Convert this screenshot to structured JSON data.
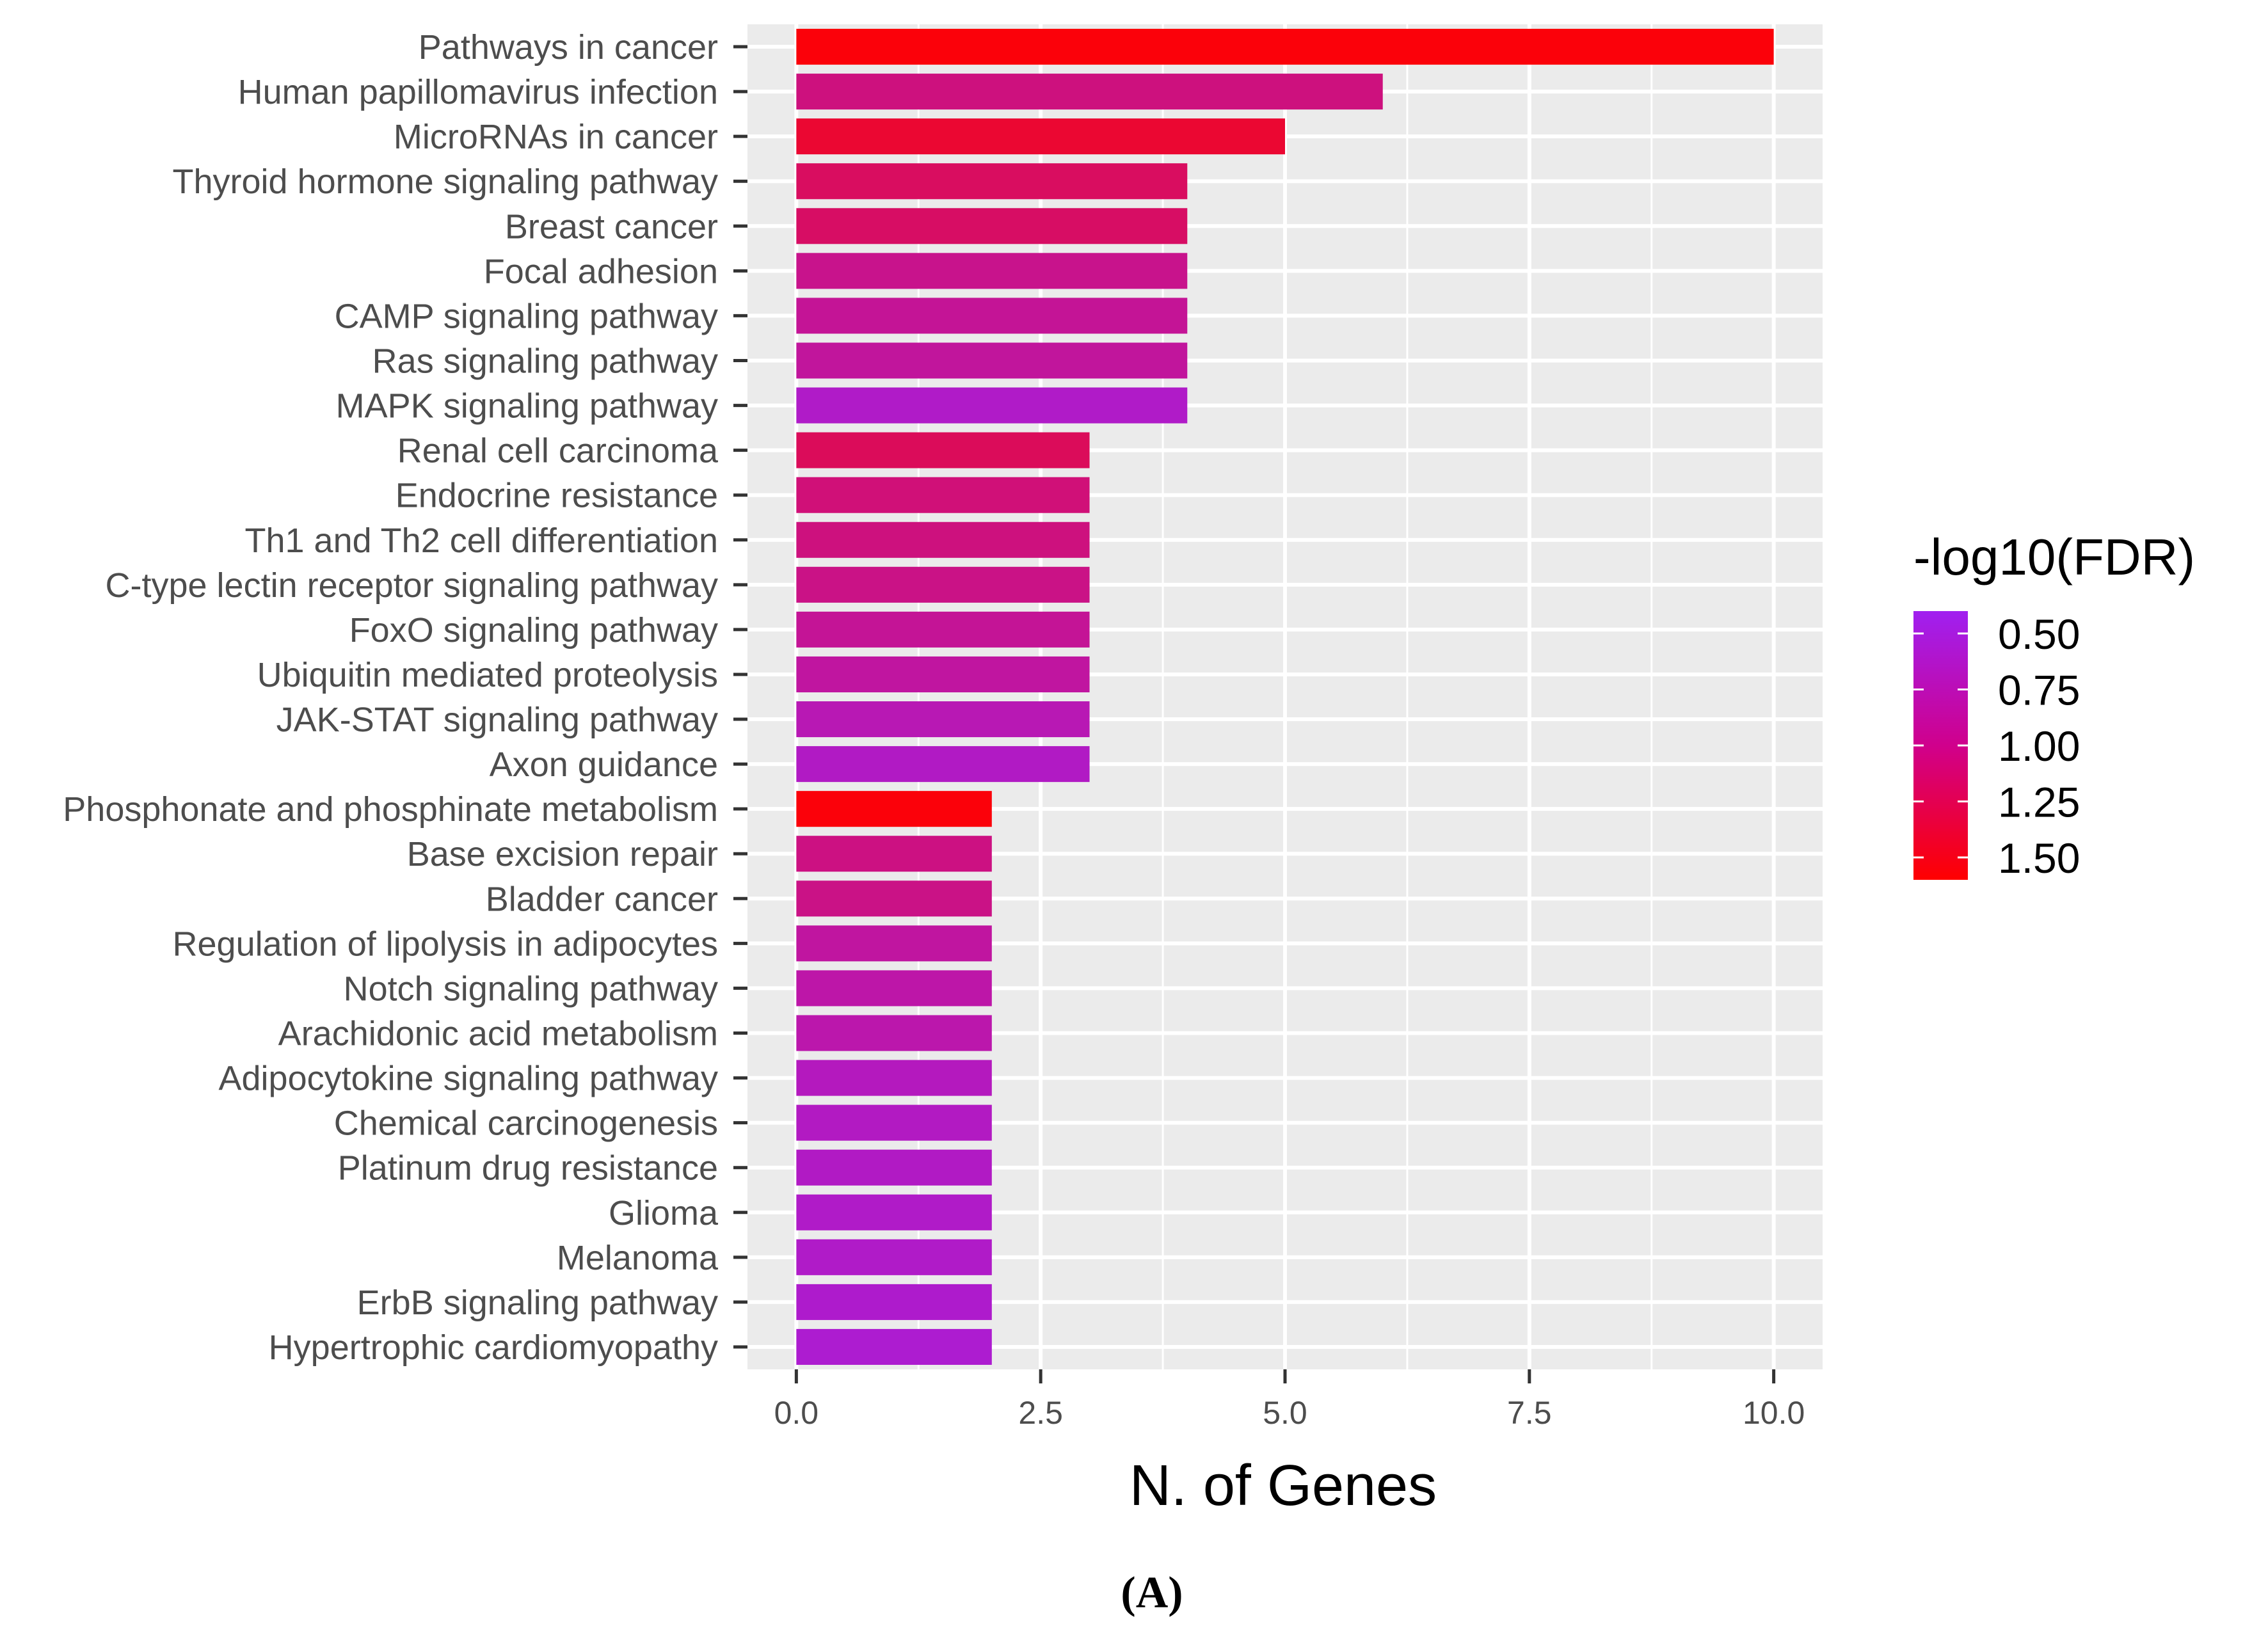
{
  "chart_data": {
    "type": "bar",
    "orientation": "horizontal",
    "title": "",
    "xlabel": "N. of Genes",
    "ylabel": "",
    "xlim": [
      -0.5,
      10.5
    ],
    "x_ticks": [
      0,
      2.5,
      5,
      7.5,
      10
    ],
    "x_tick_labels": [
      "0.0",
      "2.5",
      "5.0",
      "7.5",
      "10.0"
    ],
    "grid": true,
    "categories": [
      "Pathways in cancer",
      "Human papillomavirus infection",
      "MicroRNAs in cancer",
      "Thyroid hormone signaling pathway",
      "Breast cancer",
      "Focal adhesion",
      "CAMP signaling pathway",
      "Ras signaling pathway",
      "MAPK signaling pathway",
      "Renal cell carcinoma",
      "Endocrine resistance",
      "Th1 and Th2 cell differentiation",
      "C-type lectin receptor signaling pathway",
      "FoxO signaling pathway",
      "Ubiquitin mediated proteolysis",
      "JAK-STAT signaling pathway",
      "Axon guidance",
      "Phosphonate and phosphinate metabolism",
      "Base excision repair",
      "Bladder cancer",
      "Regulation of lipolysis in adipocytes",
      "Notch signaling pathway",
      "Arachidonic acid metabolism",
      "Adipocytokine signaling pathway",
      "Chemical carcinogenesis",
      "Platinum drug resistance",
      "Glioma",
      "Melanoma",
      "ErbB signaling pathway",
      "Hypertrophic cardiomyopathy"
    ],
    "values": [
      10,
      6,
      5,
      4,
      4,
      4,
      4,
      4,
      4,
      3,
      3,
      3,
      3,
      3,
      3,
      3,
      3,
      2,
      2,
      2,
      2,
      2,
      2,
      2,
      2,
      2,
      2,
      2,
      2,
      2
    ],
    "color_values": [
      1.55,
      0.97,
      1.35,
      1.12,
      1.1,
      0.9,
      0.85,
      0.82,
      0.6,
      1.15,
      1.0,
      0.97,
      0.93,
      0.85,
      0.8,
      0.7,
      0.62,
      1.55,
      0.95,
      0.93,
      0.8,
      0.76,
      0.74,
      0.65,
      0.63,
      0.62,
      0.6,
      0.6,
      0.58,
      0.56
    ],
    "legend": {
      "title": "-log10(FDR)",
      "position": "right",
      "range": [
        0.4,
        1.6
      ],
      "ticks": [
        0.5,
        0.75,
        1.0,
        1.25,
        1.5
      ],
      "tick_labels": [
        "0.50",
        "0.75",
        "1.00",
        "1.25",
        "1.50"
      ],
      "low_color": "#a020f0",
      "high_color": "#ff0000"
    },
    "panel_label": "(A)"
  },
  "colors": {
    "panel_background": "#ebebeb",
    "grid_major": "#ffffff",
    "axis_text": "#4d4d4d",
    "tick_mark": "#333333"
  }
}
